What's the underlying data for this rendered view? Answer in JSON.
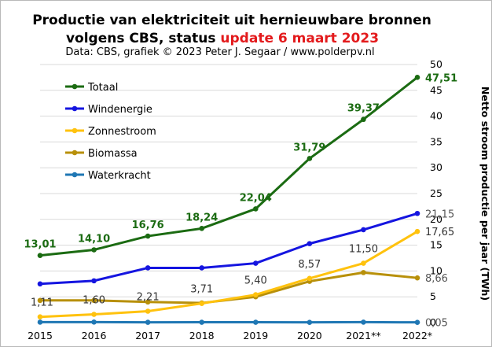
{
  "chart_data": {
    "type": "line",
    "title_line1": "Productie van elektriciteit  uit hernieuwbare bronnen",
    "title_line2_prefix": "volgens CBS, status ",
    "title_line2_highlight": "update 6 maart 2023",
    "subtitle": "Data: CBS, grafiek © 2023 Peter J. Segaar / www.polderpv.nl",
    "ylabel": "Netto stroom productie per jaar (TWh)",
    "y_axis_side": "right",
    "ylim": [
      0,
      50
    ],
    "yticks": [
      0,
      5,
      10,
      15,
      20,
      25,
      30,
      35,
      40,
      45,
      50
    ],
    "grid": "horizontal",
    "legend_position": "top-left",
    "categories": [
      "2015",
      "2016",
      "2017",
      "2018",
      "2019",
      "2020",
      "2021**",
      "2022*"
    ],
    "series": [
      {
        "name": "Totaal",
        "color": "#1b6b12",
        "values": [
          13.01,
          14.1,
          16.76,
          18.24,
          22.04,
          31.79,
          39.37,
          47.51
        ],
        "labels": [
          "13,01",
          "14,10",
          "16,76",
          "18,24",
          "22,04",
          "31,79",
          "39,37",
          "47,51"
        ],
        "label_style": "bold"
      },
      {
        "name": "Windenergie",
        "color": "#1515e0",
        "values": [
          7.5,
          8.1,
          10.6,
          10.6,
          11.5,
          15.3,
          18.0,
          21.15
        ],
        "labels": [
          "",
          "",
          "",
          "",
          "",
          "",
          "",
          "21,15"
        ],
        "label_style": "normal"
      },
      {
        "name": "Zonnestroom",
        "color": "#ffc20e",
        "values": [
          1.11,
          1.6,
          2.21,
          3.71,
          5.4,
          8.57,
          11.5,
          17.65
        ],
        "labels": [
          "1,11",
          "1,60",
          "2,21",
          "3,71",
          "5,40",
          "8,57",
          "11,50",
          "17,65"
        ],
        "label_style": "normal"
      },
      {
        "name": "Biomassa",
        "color": "#b8900a",
        "values": [
          4.3,
          4.3,
          4.0,
          3.8,
          5.0,
          8.0,
          9.7,
          8.66
        ],
        "labels": [
          "",
          "",
          "",
          "",
          "",
          "",
          "",
          "8,66"
        ],
        "label_style": "normal"
      },
      {
        "name": "Waterkracht",
        "color": "#1f77b4",
        "values": [
          0.09,
          0.1,
          0.06,
          0.07,
          0.07,
          0.05,
          0.09,
          0.05
        ],
        "labels": [
          "",
          "",
          "",
          "",
          "",
          "",
          "",
          "0,05"
        ],
        "label_style": "normal"
      }
    ]
  }
}
